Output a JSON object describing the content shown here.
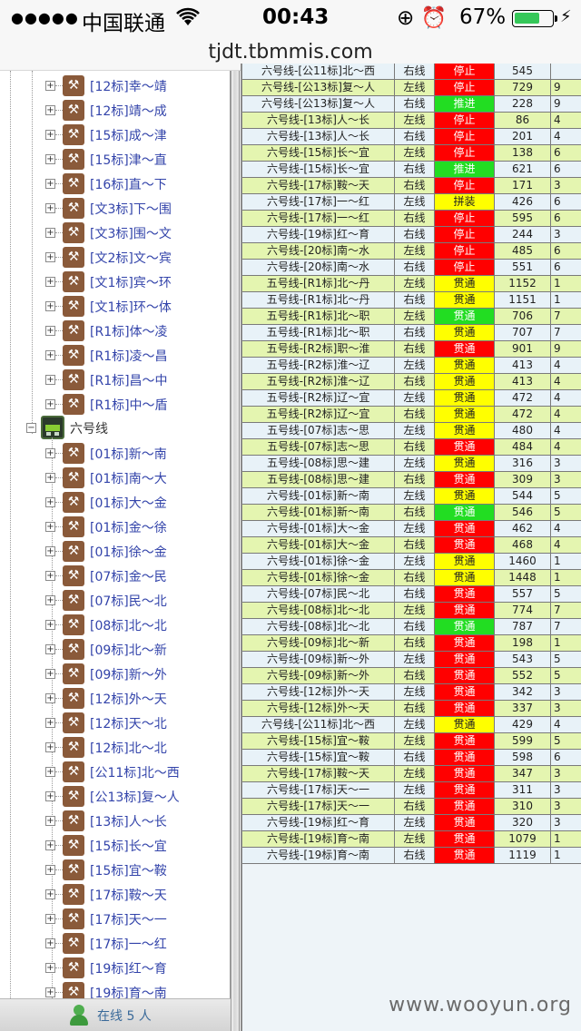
{
  "status_bar": {
    "signal": "●●●●●",
    "carrier": "中国联通",
    "wifi_icon": "wifi-icon",
    "time": "00:43",
    "right_icons": "⊕ ⏰",
    "battery_percent": "67%",
    "battery_level": 0.67,
    "charging_icon": "⚡"
  },
  "browser": {
    "url": "tjdt.tbmmis.com"
  },
  "tree": {
    "group_a_items": [
      "[12标]幸～靖",
      "[12标]靖～成",
      "[15标]成～津",
      "[15标]津～直",
      "[16标]直～下",
      "[文3标]下～围",
      "[文3标]围～文",
      "[文2标]文～宾",
      "[文1标]宾～环",
      "[文1标]环～体",
      "[R1标]体～凌",
      "[R1标]凌～昌",
      "[R1标]昌～中",
      "[R1标]中～盾"
    ],
    "line6_label": "六号线",
    "line6_items": [
      "[01标]新～南",
      "[01标]南～大",
      "[01标]大～金",
      "[01标]金～徐",
      "[01标]徐～金",
      "[07标]金～民",
      "[07标]民～北",
      "[08标]北～北",
      "[09标]北～新",
      "[09标]新～外",
      "[12标]外～天",
      "[12标]天～北",
      "[12标]北～北",
      "[公11标]北～西",
      "[公13标]复～人",
      "[13标]人～长",
      "[15标]长～宜",
      "[15标]宜～鞍",
      "[17标]鞍～天",
      "[17标]天～一",
      "[17标]一～红",
      "[19标]红～育",
      "[19标]育～南"
    ]
  },
  "footer": {
    "online_text": "在线  5 人"
  },
  "colors": {
    "red": "#ff0000",
    "green": "#22dd22",
    "yellow": "#ffff00",
    "row_a": "#e4f5b0",
    "row_b": "#e8f2f8"
  },
  "grid": {
    "rows": [
      {
        "name": "六号线-[公11标]北～西",
        "side": "右线",
        "status": "停止",
        "color": "red",
        "value": "545",
        "extra": "",
        "bg": "row_b"
      },
      {
        "name": "六号线-[公13标]复～人",
        "side": "左线",
        "status": "停止",
        "color": "red",
        "value": "729",
        "extra": "9",
        "bg": "row_a"
      },
      {
        "name": "六号线-[公13标]复～人",
        "side": "右线",
        "status": "推进",
        "color": "green",
        "value": "228",
        "extra": "9",
        "bg": "row_b"
      },
      {
        "name": "六号线-[13标]人～长",
        "side": "左线",
        "status": "停止",
        "color": "red",
        "value": "86",
        "extra": "4",
        "bg": "row_a"
      },
      {
        "name": "六号线-[13标]人～长",
        "side": "右线",
        "status": "停止",
        "color": "red",
        "value": "201",
        "extra": "4",
        "bg": "row_b"
      },
      {
        "name": "六号线-[15标]长～宜",
        "side": "左线",
        "status": "停止",
        "color": "red",
        "value": "138",
        "extra": "6",
        "bg": "row_a"
      },
      {
        "name": "六号线-[15标]长～宜",
        "side": "右线",
        "status": "推进",
        "color": "green",
        "value": "621",
        "extra": "6",
        "bg": "row_b"
      },
      {
        "name": "六号线-[17标]鞍～天",
        "side": "右线",
        "status": "停止",
        "color": "red",
        "value": "171",
        "extra": "3",
        "bg": "row_a"
      },
      {
        "name": "六号线-[17标]一～红",
        "side": "左线",
        "status": "拼装",
        "color": "yellow",
        "value": "426",
        "extra": "6",
        "bg": "row_b"
      },
      {
        "name": "六号线-[17标]一～红",
        "side": "右线",
        "status": "停止",
        "color": "red",
        "value": "595",
        "extra": "6",
        "bg": "row_a"
      },
      {
        "name": "六号线-[19标]红～育",
        "side": "右线",
        "status": "停止",
        "color": "red",
        "value": "244",
        "extra": "3",
        "bg": "row_b"
      },
      {
        "name": "六号线-[20标]南～水",
        "side": "左线",
        "status": "停止",
        "color": "red",
        "value": "485",
        "extra": "6",
        "bg": "row_a"
      },
      {
        "name": "六号线-[20标]南～水",
        "side": "右线",
        "status": "停止",
        "color": "red",
        "value": "551",
        "extra": "6",
        "bg": "row_b"
      },
      {
        "name": "五号线-[R1标]北～丹",
        "side": "左线",
        "status": "贯通",
        "color": "yellow",
        "value": "1152",
        "extra": "1",
        "bg": "row_a"
      },
      {
        "name": "五号线-[R1标]北～丹",
        "side": "右线",
        "status": "贯通",
        "color": "yellow",
        "value": "1151",
        "extra": "1",
        "bg": "row_b"
      },
      {
        "name": "五号线-[R1标]北～职",
        "side": "左线",
        "status": "贯通",
        "color": "green",
        "value": "706",
        "extra": "7",
        "bg": "row_a"
      },
      {
        "name": "五号线-[R1标]北～职",
        "side": "右线",
        "status": "贯通",
        "color": "yellow",
        "value": "707",
        "extra": "7",
        "bg": "row_b"
      },
      {
        "name": "五号线-[R2标]职～淮",
        "side": "右线",
        "status": "贯通",
        "color": "red",
        "value": "901",
        "extra": "9",
        "bg": "row_a"
      },
      {
        "name": "五号线-[R2标]淮～辽",
        "side": "左线",
        "status": "贯通",
        "color": "yellow",
        "value": "413",
        "extra": "4",
        "bg": "row_b"
      },
      {
        "name": "五号线-[R2标]淮～辽",
        "side": "右线",
        "status": "贯通",
        "color": "yellow",
        "value": "413",
        "extra": "4",
        "bg": "row_a"
      },
      {
        "name": "五号线-[R2标]辽～宜",
        "side": "左线",
        "status": "贯通",
        "color": "yellow",
        "value": "472",
        "extra": "4",
        "bg": "row_b"
      },
      {
        "name": "五号线-[R2标]辽～宜",
        "side": "右线",
        "status": "贯通",
        "color": "yellow",
        "value": "472",
        "extra": "4",
        "bg": "row_a"
      },
      {
        "name": "五号线-[07标]志～思",
        "side": "左线",
        "status": "贯通",
        "color": "yellow",
        "value": "480",
        "extra": "4",
        "bg": "row_b"
      },
      {
        "name": "五号线-[07标]志～思",
        "side": "右线",
        "status": "贯通",
        "color": "red",
        "value": "484",
        "extra": "4",
        "bg": "row_a"
      },
      {
        "name": "五号线-[08标]思～建",
        "side": "左线",
        "status": "贯通",
        "color": "yellow",
        "value": "316",
        "extra": "3",
        "bg": "row_b"
      },
      {
        "name": "五号线-[08标]思～建",
        "side": "右线",
        "status": "贯通",
        "color": "red",
        "value": "309",
        "extra": "3",
        "bg": "row_a"
      },
      {
        "name": "六号线-[01标]新～南",
        "side": "左线",
        "status": "贯通",
        "color": "yellow",
        "value": "544",
        "extra": "5",
        "bg": "row_b"
      },
      {
        "name": "六号线-[01标]新～南",
        "side": "右线",
        "status": "贯通",
        "color": "green",
        "value": "546",
        "extra": "5",
        "bg": "row_a"
      },
      {
        "name": "六号线-[01标]大～金",
        "side": "左线",
        "status": "贯通",
        "color": "red",
        "value": "462",
        "extra": "4",
        "bg": "row_b"
      },
      {
        "name": "六号线-[01标]大～金",
        "side": "右线",
        "status": "贯通",
        "color": "red",
        "value": "468",
        "extra": "4",
        "bg": "row_a"
      },
      {
        "name": "六号线-[01标]徐～金",
        "side": "左线",
        "status": "贯通",
        "color": "yellow",
        "value": "1460",
        "extra": "1",
        "bg": "row_b"
      },
      {
        "name": "六号线-[01标]徐～金",
        "side": "右线",
        "status": "贯通",
        "color": "yellow",
        "value": "1448",
        "extra": "1",
        "bg": "row_a"
      },
      {
        "name": "六号线-[07标]民～北",
        "side": "右线",
        "status": "贯通",
        "color": "red",
        "value": "557",
        "extra": "5",
        "bg": "row_b"
      },
      {
        "name": "六号线-[08标]北～北",
        "side": "左线",
        "status": "贯通",
        "color": "red",
        "value": "774",
        "extra": "7",
        "bg": "row_a"
      },
      {
        "name": "六号线-[08标]北～北",
        "side": "右线",
        "status": "贯通",
        "color": "green",
        "value": "787",
        "extra": "7",
        "bg": "row_b"
      },
      {
        "name": "六号线-[09标]北～新",
        "side": "右线",
        "status": "贯通",
        "color": "red",
        "value": "198",
        "extra": "1",
        "bg": "row_a"
      },
      {
        "name": "六号线-[09标]新～外",
        "side": "左线",
        "status": "贯通",
        "color": "red",
        "value": "543",
        "extra": "5",
        "bg": "row_b"
      },
      {
        "name": "六号线-[09标]新～外",
        "side": "右线",
        "status": "贯通",
        "color": "red",
        "value": "552",
        "extra": "5",
        "bg": "row_a"
      },
      {
        "name": "六号线-[12标]外～天",
        "side": "左线",
        "status": "贯通",
        "color": "red",
        "value": "342",
        "extra": "3",
        "bg": "row_b"
      },
      {
        "name": "六号线-[12标]外～天",
        "side": "右线",
        "status": "贯通",
        "color": "red",
        "value": "337",
        "extra": "3",
        "bg": "row_a"
      },
      {
        "name": "六号线-[公11标]北～西",
        "side": "左线",
        "status": "贯通",
        "color": "yellow",
        "value": "429",
        "extra": "4",
        "bg": "row_b"
      },
      {
        "name": "六号线-[15标]宜～鞍",
        "side": "左线",
        "status": "贯通",
        "color": "red",
        "value": "599",
        "extra": "5",
        "bg": "row_a"
      },
      {
        "name": "六号线-[15标]宜～鞍",
        "side": "右线",
        "status": "贯通",
        "color": "red",
        "value": "598",
        "extra": "6",
        "bg": "row_b"
      },
      {
        "name": "六号线-[17标]鞍～天",
        "side": "左线",
        "status": "贯通",
        "color": "red",
        "value": "347",
        "extra": "3",
        "bg": "row_a"
      },
      {
        "name": "六号线-[17标]天～一",
        "side": "左线",
        "status": "贯通",
        "color": "red",
        "value": "311",
        "extra": "3",
        "bg": "row_b"
      },
      {
        "name": "六号线-[17标]天～一",
        "side": "右线",
        "status": "贯通",
        "color": "red",
        "value": "310",
        "extra": "3",
        "bg": "row_a"
      },
      {
        "name": "六号线-[19标]红～育",
        "side": "左线",
        "status": "贯通",
        "color": "red",
        "value": "320",
        "extra": "3",
        "bg": "row_b"
      },
      {
        "name": "六号线-[19标]育～南",
        "side": "左线",
        "status": "贯通",
        "color": "red",
        "value": "1079",
        "extra": "1",
        "bg": "row_a"
      },
      {
        "name": "六号线-[19标]育～南",
        "side": "右线",
        "status": "贯通",
        "color": "red",
        "value": "1119",
        "extra": "1",
        "bg": "row_b"
      }
    ]
  },
  "watermark": "www.wooyun.org"
}
